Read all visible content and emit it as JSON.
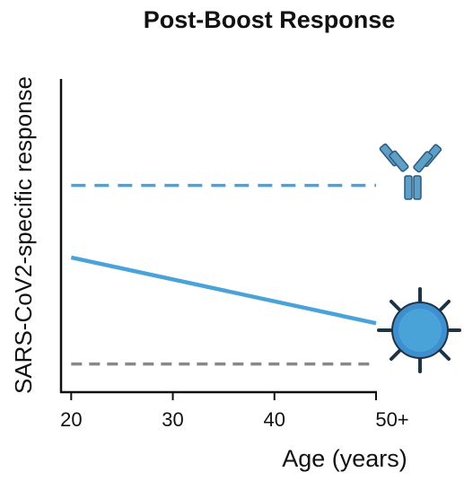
{
  "chart_data": {
    "type": "line",
    "title": "Post-Boost Response",
    "xlabel": "Age (years)",
    "ylabel": "SARS-CoV2-specific response",
    "x": [
      20,
      50
    ],
    "xlim": [
      19,
      50
    ],
    "xticks": [
      20,
      30,
      40,
      {
        "value": 50,
        "label": "50+"
      }
    ],
    "ylim": [
      0,
      1
    ],
    "series": [
      {
        "color": "#4aa3d8",
        "dash": true,
        "values": [
          0.66,
          0.66
        ]
      },
      {
        "color": "#4aa3d8",
        "dash": false,
        "values": [
          0.43,
          0.22
        ]
      },
      {
        "color": "#888888",
        "dash": true,
        "values": [
          0.09,
          0.09
        ]
      }
    ]
  }
}
